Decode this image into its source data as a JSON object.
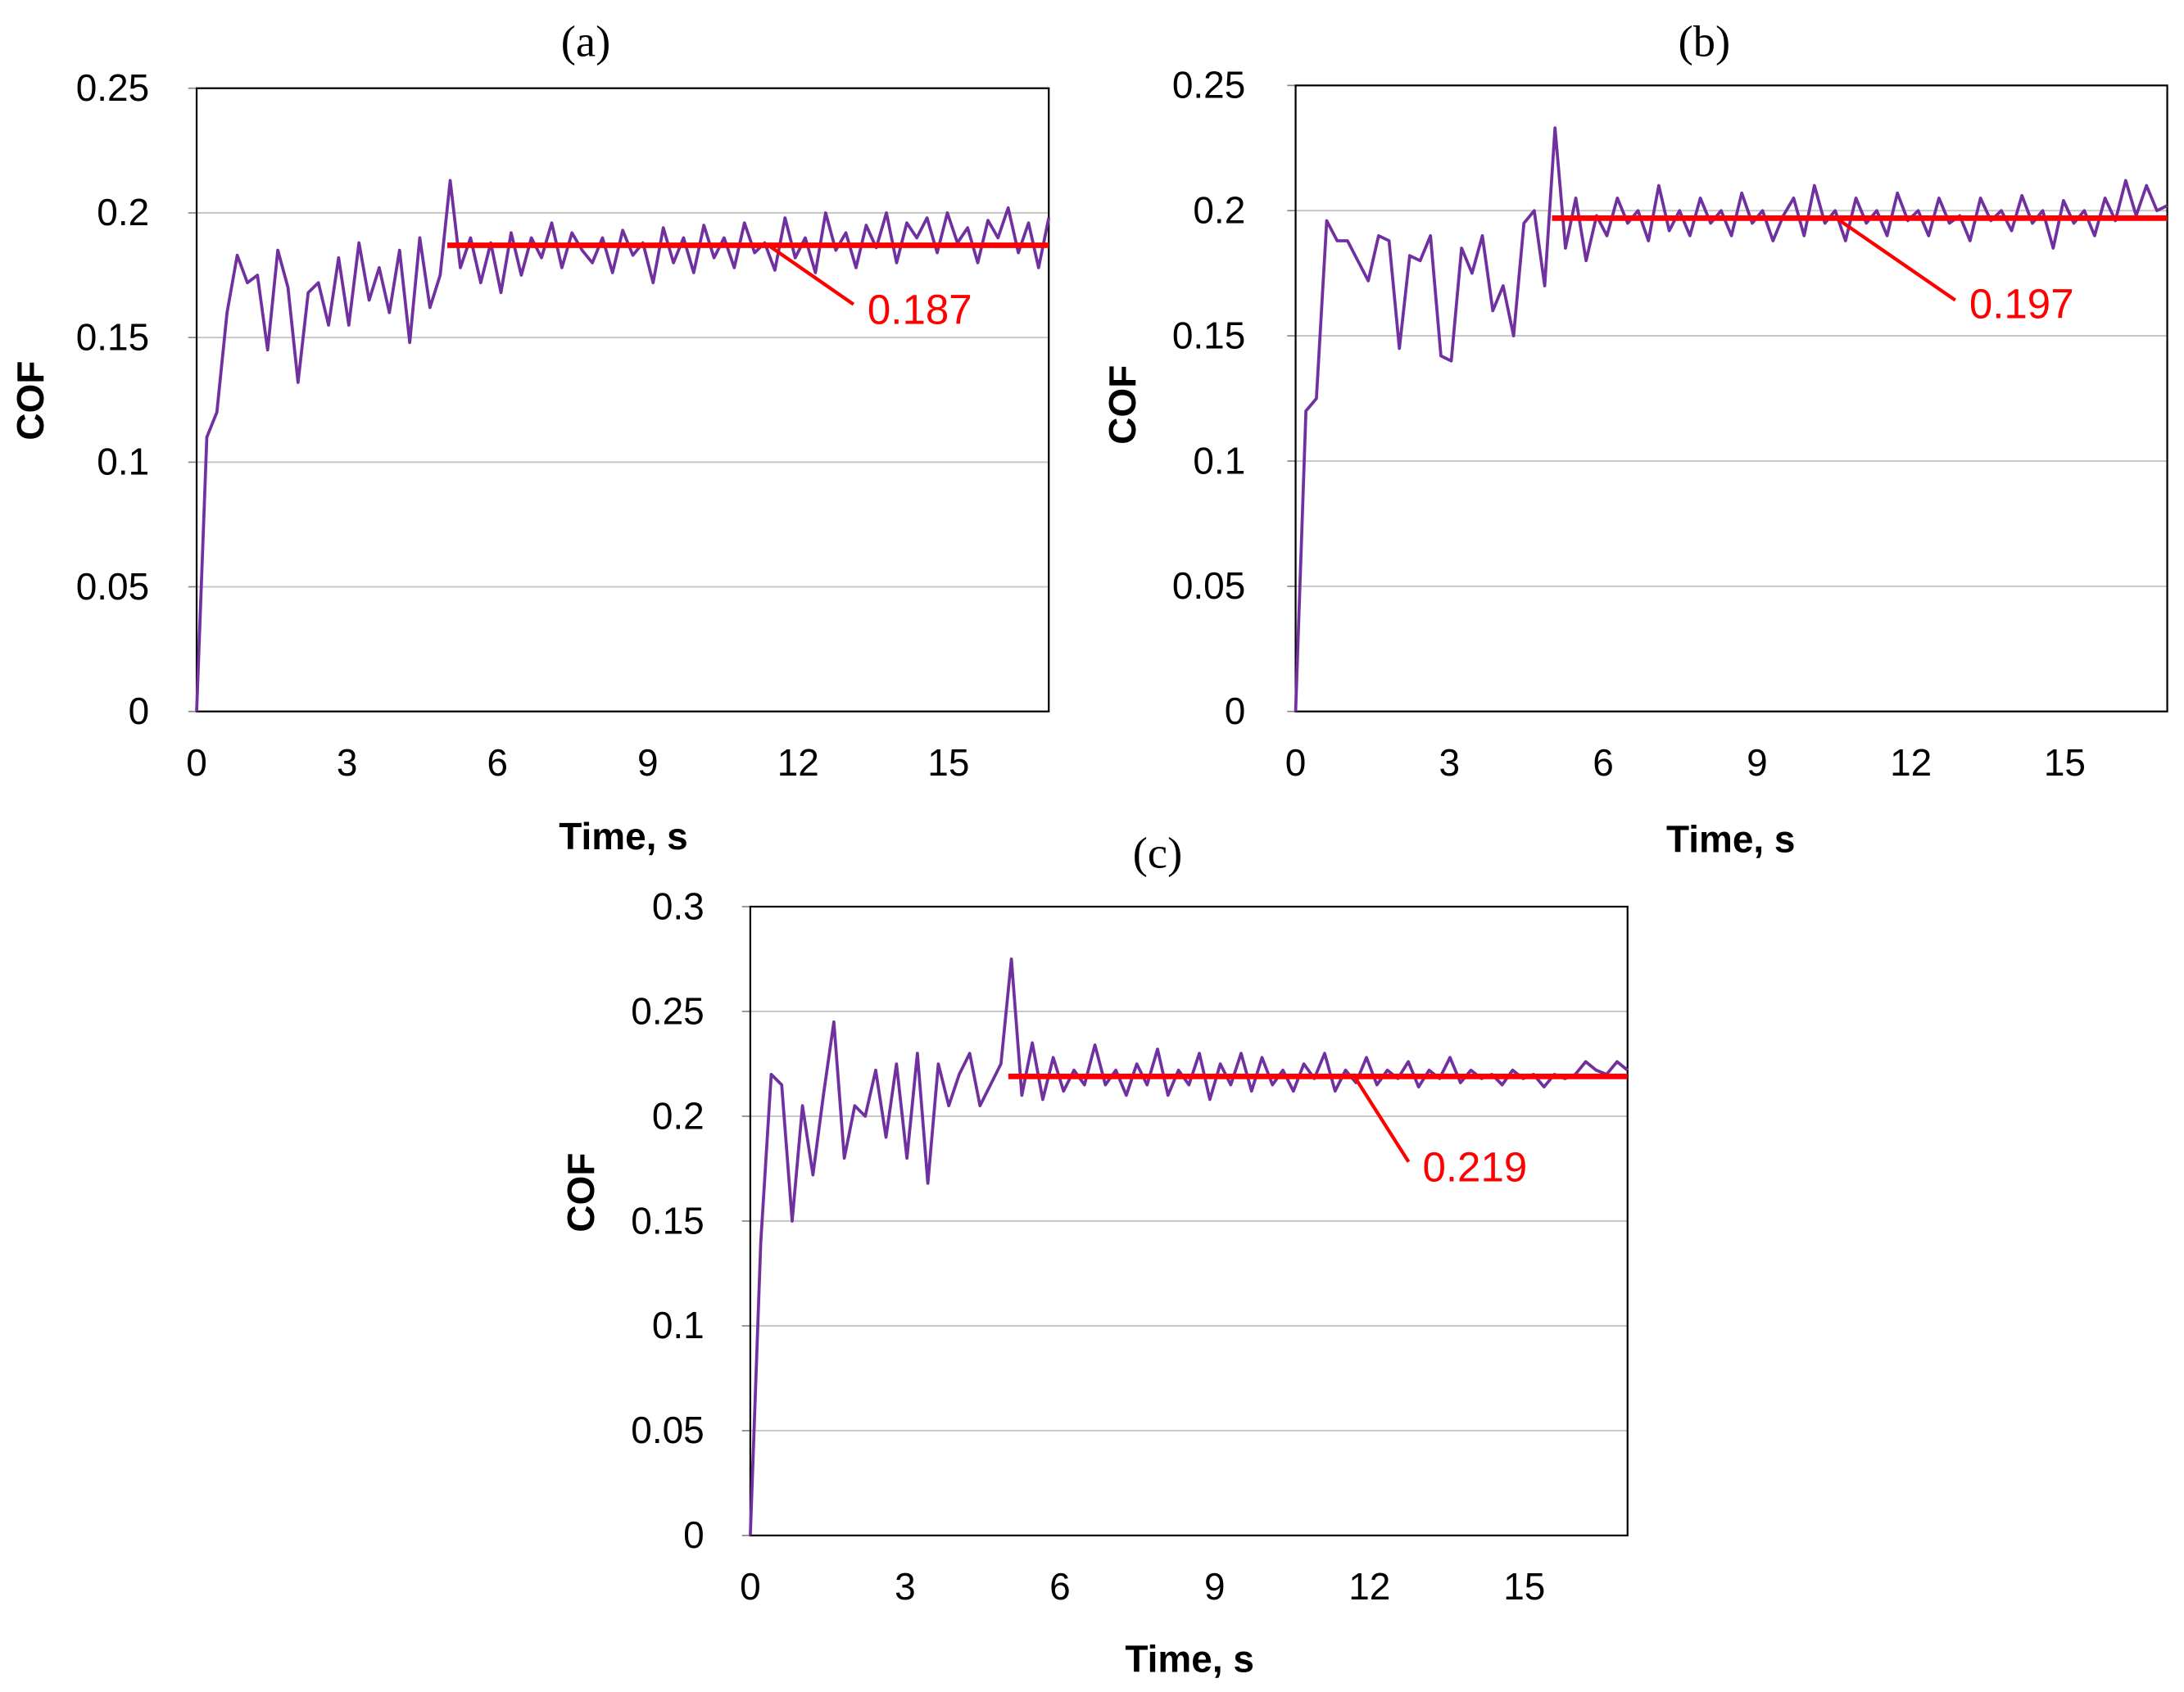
{
  "colors": {
    "series": "#7030a0",
    "mean": "#ff0000",
    "grid": "#c8c8c8"
  },
  "chart_data": [
    {
      "type": "line",
      "title": "(a)",
      "xlabel": "Time, s",
      "ylabel": "COF",
      "xlim": [
        0,
        17
      ],
      "ylim": [
        0,
        0.25
      ],
      "xticks": [
        "0",
        "3",
        "6",
        "9",
        "12",
        "15"
      ],
      "xtick_values": [
        0,
        3,
        6,
        9,
        12,
        15
      ],
      "yticks": [
        "0",
        "0.05",
        "0.1",
        "0.15",
        "0.2",
        "0.25"
      ],
      "ytick_values": [
        0,
        0.05,
        0.1,
        0.15,
        0.2,
        0.25
      ],
      "grid": "horizontal",
      "series": [
        {
          "name": "COF",
          "x_range": [
            0,
            17
          ],
          "values": [
            0,
            0.11,
            0.12,
            0.16,
            0.183,
            0.172,
            0.175,
            0.145,
            0.185,
            0.17,
            0.132,
            0.168,
            0.172,
            0.155,
            0.182,
            0.155,
            0.188,
            0.165,
            0.178,
            0.16,
            0.185,
            0.148,
            0.19,
            0.162,
            0.175,
            0.213,
            0.178,
            0.19,
            0.172,
            0.188,
            0.168,
            0.192,
            0.175,
            0.19,
            0.182,
            0.196,
            0.178,
            0.192,
            0.185,
            0.18,
            0.19,
            0.176,
            0.193,
            0.183,
            0.188,
            0.172,
            0.194,
            0.18,
            0.19,
            0.176,
            0.195,
            0.182,
            0.19,
            0.178,
            0.196,
            0.184,
            0.188,
            0.177,
            0.198,
            0.182,
            0.19,
            0.176,
            0.2,
            0.185,
            0.192,
            0.178,
            0.195,
            0.186,
            0.2,
            0.18,
            0.196,
            0.19,
            0.198,
            0.184,
            0.2,
            0.188,
            0.194,
            0.18,
            0.197,
            0.19,
            0.202,
            0.184,
            0.196,
            0.178,
            0.198
          ]
        }
      ],
      "mean_line": {
        "value": 0.187,
        "x_range": [
          5,
          17
        ],
        "label": "0.187"
      }
    },
    {
      "type": "line",
      "title": "(b)",
      "xlabel": "Time, s",
      "ylabel": "COF",
      "xlim": [
        0,
        17
      ],
      "ylim": [
        0,
        0.25
      ],
      "xticks": [
        "0",
        "3",
        "6",
        "9",
        "12",
        "15"
      ],
      "xtick_values": [
        0,
        3,
        6,
        9,
        12,
        15
      ],
      "yticks": [
        "0",
        "0.05",
        "0.1",
        "0.15",
        "0.2",
        "0.25"
      ],
      "ytick_values": [
        0,
        0.05,
        0.1,
        0.15,
        0.2,
        0.25
      ],
      "grid": "horizontal",
      "series": [
        {
          "name": "COF",
          "x_range": [
            0,
            17
          ],
          "values": [
            0,
            0.12,
            0.125,
            0.196,
            0.188,
            0.188,
            0.18,
            0.172,
            0.19,
            0.188,
            0.145,
            0.182,
            0.18,
            0.19,
            0.142,
            0.14,
            0.185,
            0.175,
            0.19,
            0.16,
            0.17,
            0.15,
            0.195,
            0.2,
            0.17,
            0.233,
            0.185,
            0.205,
            0.18,
            0.198,
            0.19,
            0.205,
            0.195,
            0.2,
            0.188,
            0.21,
            0.192,
            0.2,
            0.19,
            0.205,
            0.195,
            0.2,
            0.19,
            0.207,
            0.195,
            0.2,
            0.188,
            0.198,
            0.205,
            0.19,
            0.21,
            0.195,
            0.2,
            0.188,
            0.205,
            0.195,
            0.2,
            0.19,
            0.207,
            0.196,
            0.2,
            0.19,
            0.205,
            0.195,
            0.198,
            0.188,
            0.205,
            0.196,
            0.2,
            0.192,
            0.206,
            0.195,
            0.2,
            0.185,
            0.204,
            0.195,
            0.2,
            0.19,
            0.205,
            0.196,
            0.212,
            0.198,
            0.21,
            0.2,
            0.202
          ]
        }
      ],
      "mean_line": {
        "value": 0.197,
        "x_range": [
          5,
          17
        ],
        "label": "0.197"
      }
    },
    {
      "type": "line",
      "title": "(c)",
      "xlabel": "Time, s",
      "ylabel": "COF",
      "xlim": [
        0,
        17
      ],
      "ylim": [
        0,
        0.3
      ],
      "xticks": [
        "0",
        "3",
        "6",
        "9",
        "12",
        "15"
      ],
      "xtick_values": [
        0,
        3,
        6,
        9,
        12,
        15
      ],
      "yticks": [
        "0",
        "0.05",
        "0.1",
        "0.15",
        "0.2",
        "0.25",
        "0.3"
      ],
      "ytick_values": [
        0,
        0.05,
        0.1,
        0.15,
        0.2,
        0.25,
        0.3
      ],
      "grid": "horizontal",
      "series": [
        {
          "name": "COF",
          "x_range": [
            0,
            17
          ],
          "values": [
            0,
            0.14,
            0.22,
            0.215,
            0.15,
            0.205,
            0.172,
            0.21,
            0.245,
            0.18,
            0.205,
            0.2,
            0.222,
            0.19,
            0.225,
            0.18,
            0.23,
            0.168,
            0.225,
            0.205,
            0.22,
            0.23,
            0.205,
            0.215,
            0.225,
            0.275,
            0.21,
            0.235,
            0.208,
            0.228,
            0.212,
            0.222,
            0.215,
            0.234,
            0.215,
            0.222,
            0.21,
            0.225,
            0.215,
            0.232,
            0.21,
            0.222,
            0.215,
            0.23,
            0.208,
            0.225,
            0.215,
            0.23,
            0.212,
            0.228,
            0.215,
            0.222,
            0.212,
            0.225,
            0.218,
            0.23,
            0.212,
            0.222,
            0.216,
            0.228,
            0.215,
            0.222,
            0.218,
            0.226,
            0.214,
            0.222,
            0.218,
            0.228,
            0.216,
            0.222,
            0.218,
            0.22,
            0.215,
            0.222,
            0.218,
            0.22,
            0.214,
            0.22,
            0.218,
            0.22,
            0.226,
            0.222,
            0.22,
            0.226,
            0.222
          ]
        }
      ],
      "mean_line": {
        "value": 0.219,
        "x_range": [
          5,
          17
        ],
        "label": "0.219"
      }
    }
  ]
}
